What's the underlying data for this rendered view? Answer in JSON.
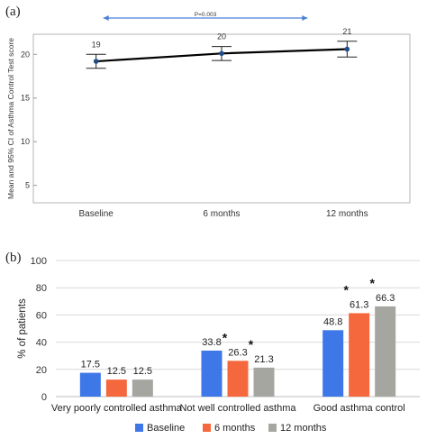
{
  "chart_data": [
    {
      "panel_label": "(a)",
      "type": "line",
      "ylabel": "Mean and 95% CI of Asthma Control Test score",
      "xlabel": "",
      "categories": [
        "Baseline",
        "6 months",
        "12 months"
      ],
      "yticks": [
        "5",
        "10",
        "15",
        "20"
      ],
      "ylim": [
        3,
        22.3
      ],
      "grid": false,
      "series": [
        {
          "values": [
            19.2,
            20.1,
            20.6
          ],
          "ci_low": [
            18.4,
            19.3,
            19.7
          ],
          "ci_high": [
            20.0,
            20.9,
            21.5
          ],
          "labels": [
            "19",
            "20",
            "21"
          ],
          "color": "#000000"
        }
      ],
      "annotation": {
        "text": "P=0.003",
        "from": "Baseline",
        "to": "12 months",
        "color": "#4a7fd6"
      }
    },
    {
      "panel_label": "(b)",
      "type": "bar",
      "ylabel": "% of patients",
      "xlabel": "",
      "categories": [
        "Very poorly controlled asthma",
        "Not well controlled asthma",
        "Good asthma control"
      ],
      "yticks": [
        "0",
        "20",
        "40",
        "60",
        "80",
        "100"
      ],
      "ylim": [
        0,
        100
      ],
      "grid": true,
      "legend_position": "bottom",
      "series": [
        {
          "name": "Baseline",
          "color": "#3d77e8",
          "values": [
            17.5,
            33.8,
            48.8
          ],
          "labels": [
            "17.5",
            "33.8",
            "48.8"
          ],
          "star": [
            false,
            false,
            false
          ]
        },
        {
          "name": "6 months",
          "color": "#f5683d",
          "values": [
            12.5,
            26.3,
            61.3
          ],
          "labels": [
            "12.5",
            "26.3",
            "61.3"
          ],
          "star": [
            false,
            true,
            true
          ]
        },
        {
          "name": "12 months",
          "color": "#a6a6a1",
          "values": [
            12.5,
            21.3,
            66.3
          ],
          "labels": [
            "12.5",
            "21.3",
            "66.3"
          ],
          "star": [
            false,
            true,
            true
          ]
        }
      ],
      "star_symbol": "*"
    }
  ]
}
